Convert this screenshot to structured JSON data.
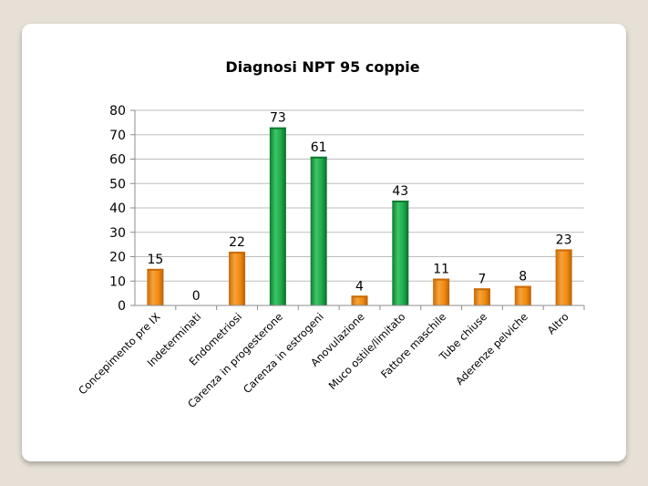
{
  "chart_data": {
    "type": "bar",
    "title": "Diagnosi NPT 95 coppie",
    "xlabel": "",
    "ylabel": "",
    "ylim": [
      0,
      80
    ],
    "yticks": [
      0,
      10,
      20,
      30,
      40,
      50,
      60,
      70,
      80
    ],
    "grid": true,
    "legend": "none",
    "categories": [
      "Concepimento pre IX",
      "Indeterminati",
      "Endometriosi",
      "Carenza in progesterone",
      "Carenza in estrogeni",
      "Anovulazione",
      "Muco ostile/limitato",
      "Fattore maschile",
      "Tube chiuse",
      "Aderenze pelviche",
      "Altro"
    ],
    "values": [
      15,
      0,
      22,
      73,
      61,
      4,
      43,
      11,
      7,
      8,
      23
    ],
    "bar_colors": [
      "orange",
      "orange",
      "orange",
      "green",
      "green",
      "orange",
      "green",
      "orange",
      "orange",
      "orange",
      "orange"
    ],
    "colors": {
      "orange": "#f08a0f",
      "orange_dark": "#c86a05",
      "green": "#1ea84a",
      "green_dark": "#0f7a32",
      "grid": "#bdbdbd",
      "axis": "#8c8c8c"
    }
  }
}
